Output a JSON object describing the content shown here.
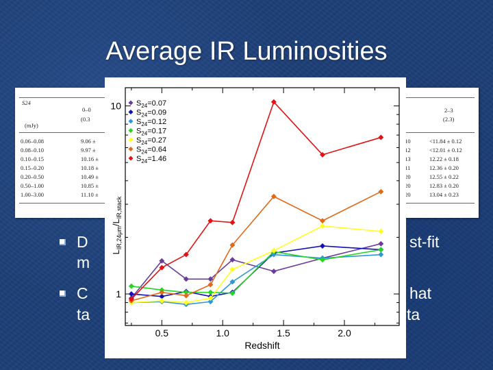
{
  "slide": {
    "title": "Average IR Luminosities",
    "bullets": [
      {
        "line1": "D",
        "line1_end": "st-fit",
        "line2": "m"
      },
      {
        "line1": "C",
        "line1_end": "hat",
        "line2": "ta",
        "line2_end": "ta"
      }
    ]
  },
  "table_left": {
    "header": [
      "S24",
      "(mJy)",
      "0–0",
      "(0.3"
    ],
    "rows": [
      [
        "0.06–0.08",
        "9.06 ±"
      ],
      [
        "0.08–0.10",
        "9.97 ±"
      ],
      [
        "0.10–0.15",
        "10.16 ±"
      ],
      [
        "0.15–0.20",
        "10.18 ±"
      ],
      [
        "0.20–0.50",
        "10.49 ±"
      ],
      [
        "0.50–1.00",
        "10.85 ±"
      ],
      [
        "1.00–3.00",
        "11.10 ±"
      ]
    ]
  },
  "table_right": {
    "header": [
      "2–3",
      "(2.3)"
    ],
    "rows": [
      [
        ".10",
        "<11.84 ± 0.12"
      ],
      [
        ".12",
        "<12.01 ± 0.12"
      ],
      [
        ".13",
        "12.22 ± 0.18"
      ],
      [
        ".11",
        "12.36 ± 0.20"
      ],
      [
        ".20",
        "12.55 ± 0.22"
      ],
      [
        ".20",
        "12.83 ± 0.20"
      ],
      [
        ".20",
        "13.04 ± 0.23"
      ]
    ]
  },
  "chart_data": {
    "type": "line",
    "title": "",
    "xlabel": "Redshift",
    "ylabel_main": "L",
    "ylabel_sub": "IR,24μm",
    "ylabel_sep": "/L",
    "ylabel_sub2": "IR,stack",
    "xlim": [
      0.2,
      2.45
    ],
    "ylim": [
      0.68,
      12.5
    ],
    "yscale": "log",
    "xticks": [
      0.5,
      1.0,
      1.5,
      2.0
    ],
    "xtick_labels": [
      "0.5",
      "1.0",
      "1.5",
      "2.0"
    ],
    "yticks": [
      1,
      10
    ],
    "ytick_labels": [
      "1",
      "10"
    ],
    "legend_position": "top-left",
    "x": [
      0.25,
      0.5,
      0.7,
      0.9,
      1.08,
      1.42,
      1.82,
      2.3
    ],
    "series": [
      {
        "name": "S24=0.07",
        "label_sub": "24",
        "label_val": "=0.07",
        "color": "#6a3d9a",
        "values": [
          0.95,
          1.5,
          1.2,
          1.2,
          1.52,
          1.32,
          1.55,
          1.85
        ]
      },
      {
        "name": "S24=0.09",
        "label_sub": "24",
        "label_val": "=0.09",
        "color": "#1010b8",
        "values": [
          1.0,
          0.97,
          1.03,
          0.97,
          1.02,
          1.65,
          1.8,
          1.72
        ]
      },
      {
        "name": "S24=0.12",
        "label_sub": "24",
        "label_val": "=0.12",
        "color": "#2f96d8",
        "values": [
          0.9,
          0.91,
          0.88,
          0.91,
          1.16,
          1.62,
          1.55,
          1.62
        ]
      },
      {
        "name": "S24=0.17",
        "label_sub": "24",
        "label_val": "=0.17",
        "color": "#25d425",
        "values": [
          1.1,
          1.05,
          1.02,
          1.02,
          1.01,
          1.68,
          1.52,
          1.72
        ]
      },
      {
        "name": "S24=0.27",
        "label_sub": "24",
        "label_val": "=0.27",
        "color": "#ffff20",
        "values": [
          0.9,
          0.92,
          0.9,
          0.95,
          1.35,
          1.7,
          2.3,
          2.15
        ]
      },
      {
        "name": "S24=0.64",
        "label_sub": "24",
        "label_val": "=0.64",
        "color": "#e06a1a",
        "values": [
          0.92,
          1.02,
          0.98,
          1.12,
          1.82,
          3.3,
          2.45,
          3.5
        ]
      },
      {
        "name": "S24=1.46",
        "label_sub": "24",
        "label_val": "=1.46",
        "color": "#e01414",
        "values": [
          0.94,
          1.38,
          1.62,
          2.45,
          2.4,
          10.5,
          5.5,
          6.8
        ]
      }
    ]
  }
}
